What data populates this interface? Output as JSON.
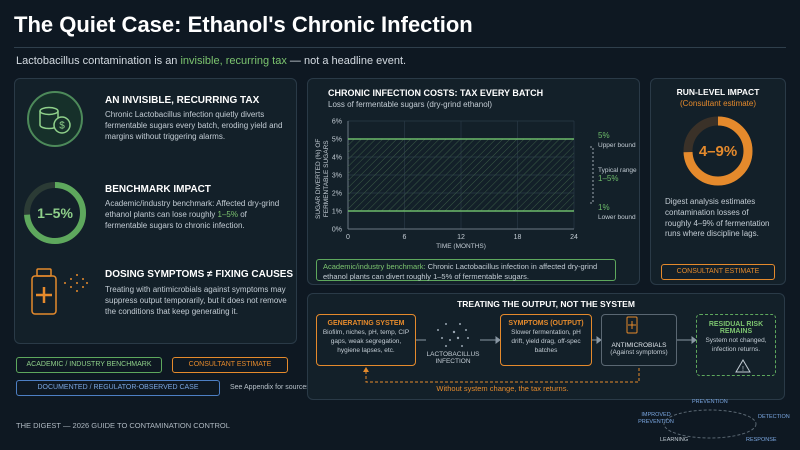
{
  "header": {
    "title": "The Quiet Case: Ethanol's Chronic Infection",
    "subtitle": [
      "Lactobacillus contamination is an ",
      "invisible, recurring tax",
      " — not a headline event."
    ]
  },
  "sections": [
    {
      "heading": "AN INVISIBLE, RECURRING TAX",
      "body": [
        "Chronic Lactobacillus infection quietly diverts fermentable sugars every batch, eroding yield and margins without triggering alarms."
      ]
    },
    {
      "badge": "1–5%",
      "heading": "BENCHMARK IMPACT",
      "body": [
        "Academic/industry benchmark: Affected dry-grind ethanol plants can lose roughly ",
        "1–5%",
        " of fermentable sugars to chronic infection."
      ]
    },
    {
      "heading": "DOSING SYMPTOMS ≠ FIXING CAUSES",
      "body": [
        "Treating with antimicrobials against symptoms may suppress output temporarily, but it does not remove the conditions that keep generating it."
      ]
    }
  ],
  "legend": {
    "items": [
      "ACADEMIC / INDUSTRY BENCHMARK",
      "CONSULTANT ESTIMATE",
      "DOCUMENTED / REGULATOR-OBSERVED CASE"
    ],
    "note": "See Appendix for sources."
  },
  "chart_data": {
    "type": "band",
    "title": "CHRONIC INFECTION COSTS: TAX EVERY BATCH",
    "subtitle": "Loss of fermentable sugars (dry-grind ethanol)",
    "y_label": "SUGAR DIVERTED (%) OF FERMENTABLE SUGARS",
    "x_label": "TIME (MONTHS)",
    "x": [
      0,
      24
    ],
    "xlim": [
      0,
      24
    ],
    "xticks": [
      0,
      6,
      12,
      18,
      24
    ],
    "ylim": [
      0,
      6
    ],
    "yticks": [
      {
        "value": 0,
        "label": "0%"
      },
      {
        "value": 1,
        "label": "1%"
      },
      {
        "value": 2,
        "label": "2%"
      },
      {
        "value": 3,
        "label": "3%"
      },
      {
        "value": 4,
        "label": "4%"
      },
      {
        "value": 5,
        "label": "5%"
      },
      {
        "value": 6,
        "label": "6%"
      }
    ],
    "grid": true,
    "series": [
      {
        "name": "Upper bound",
        "color": "#6dbb6a",
        "values": [
          5,
          5
        ],
        "value_labels": [
          "5%",
          null
        ]
      },
      {
        "name": "Lower bound",
        "color": "#6dbb6a",
        "values": [
          1,
          1
        ],
        "value_labels": [
          "1%",
          null
        ]
      }
    ],
    "annotations": [
      "Typical range",
      "1–5%"
    ],
    "note": [
      "Academic/industry benchmark:",
      " Chronic Lactobacillus infection in affected dry-grind ethanol plants can divert roughly 1–5% of fermentable sugars."
    ]
  },
  "run_level": {
    "title": "RUN-LEVEL IMPACT",
    "subtitle": "(Consultant estimate)",
    "badge": "4–9%",
    "body": "Digest analysis estimates contamination losses of roughly 4–9% of fermentation runs where discipline lags.",
    "tag": "CONSULTANT ESTIMATE"
  },
  "flow": {
    "title": "TREATING THE OUTPUT, NOT THE SYSTEM",
    "nodes": [
      {
        "label": "GENERATING SYSTEM",
        "detail": "Biofilm, niches, pH, temp, CIP gaps, weak segregation, hygiene lapses, etc."
      },
      {
        "label": "LACTOBACILLUS INFECTION"
      },
      {
        "label": "SYMPTOMS (OUTPUT)",
        "detail": "Slower fermentation, pH drift, yield drag, off-spec batches"
      },
      {
        "label": "ANTIMICROBIALS",
        "detail": "(Against symptoms)"
      },
      {
        "label": "RESIDUAL RISK REMAINS",
        "detail": "System not changed, infection returns."
      }
    ],
    "loop": "Without system change, the tax returns."
  },
  "footer": "THE DIGEST — 2026 GUIDE TO CONTAMINATION CONTROL",
  "cycle": [
    "PREVENTION",
    "DETECTION",
    "RESPONSE",
    "LEARNING",
    "IMPROVED PREVENTION"
  ]
}
